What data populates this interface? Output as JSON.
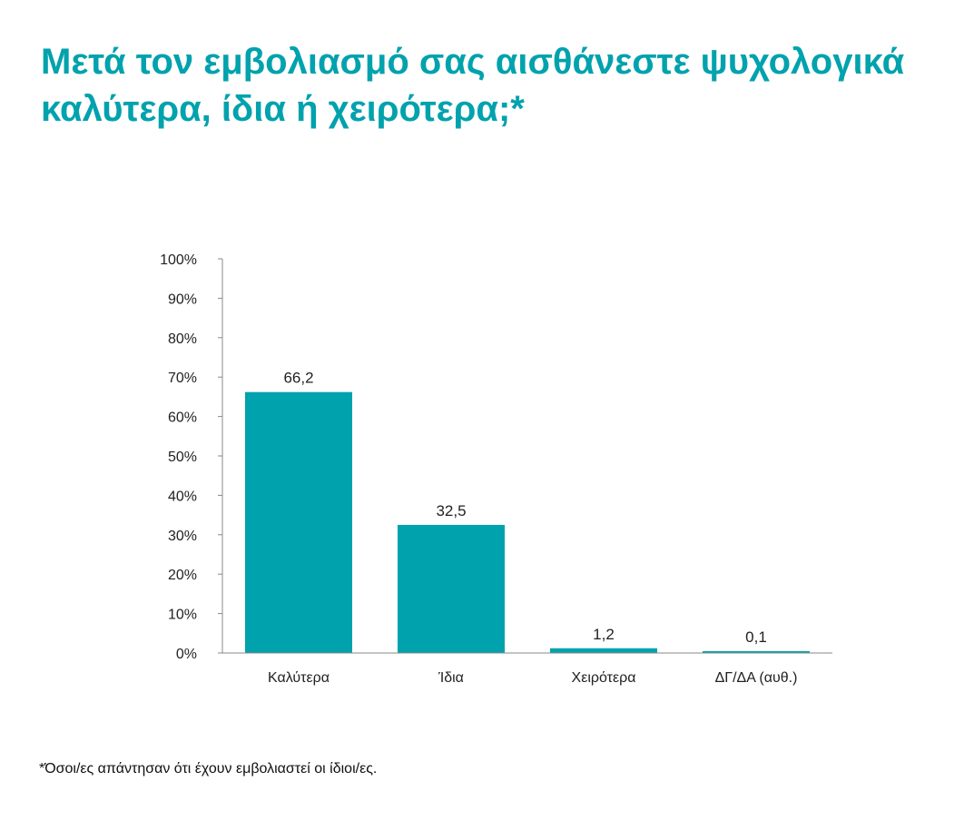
{
  "title": "Μετά τον εμβολιασμό σας αισθάνεστε ψυχολογικά καλύτερα, ίδια ή χειρότερα;*",
  "footnote": "*Όσοι/ες απάντησαν ότι έχουν εμβολιαστεί οι ίδιοι/ες.",
  "colors": {
    "accent": "#00A2AD",
    "text": "#222222",
    "axis": "#888888"
  },
  "chart_data": {
    "type": "bar",
    "title": "Μετά τον εμβολιασμό σας αισθάνεστε ψυχολογικά καλύτερα, ίδια ή χειρότερα;*",
    "categories": [
      "Καλύτερα",
      "Ίδια",
      "Χειρότερα",
      "ΔΓ/ΔΑ (αυθ.)"
    ],
    "values": [
      66.2,
      32.5,
      1.2,
      0.1
    ],
    "value_labels": [
      "66,2",
      "32,5",
      "1,2",
      "0,1"
    ],
    "ylim": [
      0,
      100
    ],
    "yticks": [
      "0%",
      "10%",
      "20%",
      "30%",
      "40%",
      "50%",
      "60%",
      "70%",
      "80%",
      "90%",
      "100%"
    ],
    "grid": false,
    "legend": "none",
    "xlabel": "",
    "ylabel": ""
  }
}
